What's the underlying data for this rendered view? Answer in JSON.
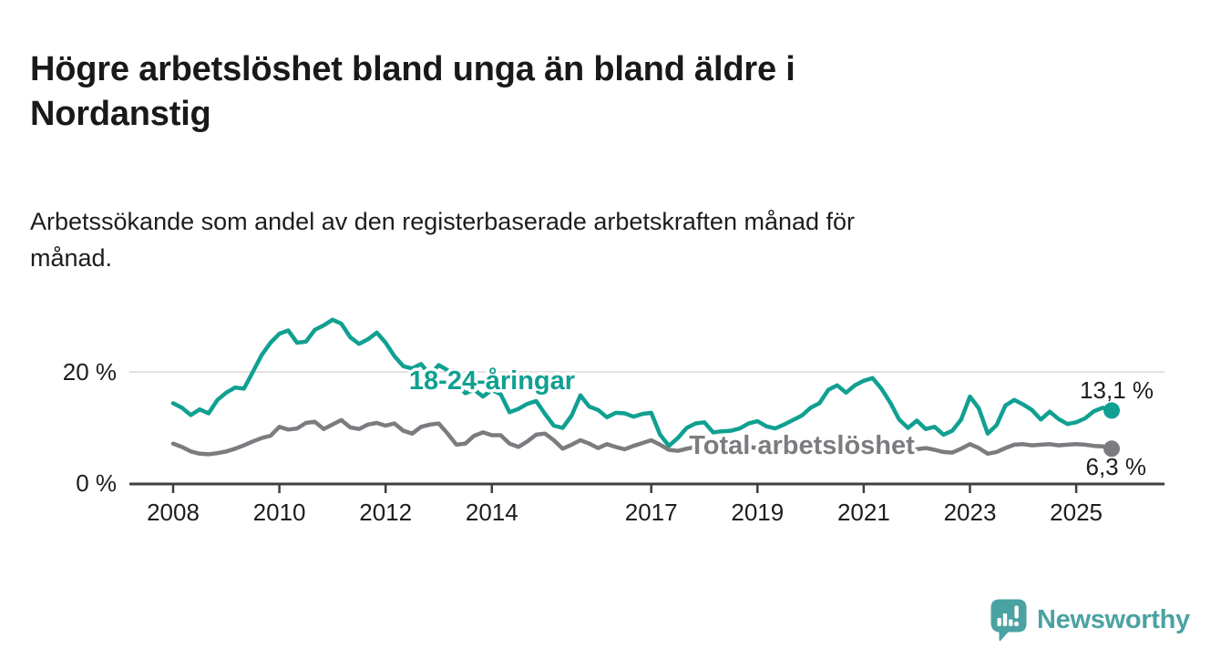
{
  "header": {
    "title_lines": [
      "Högre arbetslöshet bland unga än bland äldre i",
      "Nordanstig"
    ],
    "subtitle_lines": [
      "Arbetssökande som andel av den registerbaserade arbetskraften månad för",
      "månad."
    ]
  },
  "footer": {
    "brand": "Newsworthy",
    "brand_color": "#4ba2a2",
    "logo_icon": "newsworthy-speech-bubble-bar-chart-icon"
  },
  "colors": {
    "young_series": "#10a091",
    "total_series": "#7c7c80",
    "gridline": "#e2e2e2",
    "axis": "#3f3f3f",
    "text": "#1d1d1d",
    "background": "#ffffff"
  },
  "chart_data": {
    "type": "line",
    "title": "Högre arbetslöshet bland unga än bland äldre i Nordanstig",
    "subtitle": "Arbetssökande som andel av den registerbaserade arbetskraften månad för månad.",
    "xlabel": "",
    "ylabel": "",
    "x_start_year": 2008.0,
    "x_step_years": 0.16667,
    "x_end_year": 2025.667,
    "ylim": [
      0,
      30.5
    ],
    "grid": "single horizontal gridline at 20 %",
    "legend": "inline labels on lines",
    "x_tick_years": [
      2008,
      2010,
      2012,
      2014,
      2017,
      2019,
      2021,
      2023,
      2025
    ],
    "x_tick_labels": [
      "2008",
      "2010",
      "2012",
      "2014",
      "2017",
      "2019",
      "2021",
      "2023",
      "2025"
    ],
    "y_ticks": [
      {
        "value": 20,
        "label": "20 %"
      },
      {
        "value": 0,
        "label": "0 %"
      }
    ],
    "series": [
      {
        "name": "18-24-åringar",
        "color": "#10a091",
        "end_label": "13,1 %",
        "end_value": 13.1,
        "values": [
          14.4,
          13.6,
          12.3,
          13.3,
          12.6,
          15.0,
          16.3,
          17.2,
          17.0,
          20.0,
          23.0,
          25.2,
          26.8,
          27.4,
          25.2,
          25.4,
          27.5,
          28.3,
          29.3,
          28.6,
          26.2,
          25.0,
          25.8,
          27.0,
          25.2,
          22.8,
          21.0,
          20.6,
          21.4,
          19.5,
          21.2,
          20.3,
          17.8,
          16.2,
          16.8,
          15.6,
          16.8,
          16.0,
          12.8,
          13.4,
          14.3,
          14.8,
          12.5,
          10.4,
          10.0,
          12.2,
          15.8,
          13.8,
          13.2,
          11.9,
          12.7,
          12.6,
          12.0,
          12.5,
          12.7,
          8.8,
          6.8,
          8.2,
          10.0,
          10.8,
          11.0,
          9.2,
          9.4,
          9.5,
          9.9,
          10.8,
          11.2,
          10.3,
          9.9,
          10.6,
          11.4,
          12.2,
          13.6,
          14.4,
          16.8,
          17.6,
          16.3,
          17.6,
          18.4,
          18.9,
          17.0,
          14.5,
          11.5,
          10.0,
          11.3,
          9.8,
          10.2,
          8.8,
          9.5,
          11.5,
          15.6,
          13.5,
          9.0,
          10.5,
          14.0,
          15.0,
          14.2,
          13.2,
          11.5,
          12.9,
          11.6,
          10.7,
          11.0,
          11.7,
          13.0,
          13.6,
          13.1
        ]
      },
      {
        "name": "Total arbetslöshet",
        "color": "#7c7c80",
        "end_label": "6,3 %",
        "end_value": 6.3,
        "values": [
          7.2,
          6.6,
          5.8,
          5.4,
          5.3,
          5.5,
          5.8,
          6.3,
          6.9,
          7.6,
          8.2,
          8.6,
          10.2,
          9.7,
          9.9,
          10.9,
          11.1,
          9.8,
          10.6,
          11.4,
          10.1,
          9.8,
          10.6,
          10.9,
          10.4,
          10.8,
          9.5,
          9.0,
          10.2,
          10.6,
          10.8,
          9.0,
          7.0,
          7.2,
          8.6,
          9.2,
          8.7,
          8.7,
          7.2,
          6.6,
          7.6,
          8.8,
          9.0,
          7.8,
          6.3,
          7.0,
          7.8,
          7.2,
          6.4,
          7.1,
          6.6,
          6.2,
          6.8,
          7.3,
          7.8,
          7.0,
          6.1,
          5.9,
          6.3,
          6.6,
          7.0,
          6.6,
          6.3,
          6.1,
          6.4,
          6.6,
          6.4,
          6.2,
          6.4,
          6.6,
          6.4,
          6.6,
          6.6,
          6.8,
          7.4,
          7.7,
          7.5,
          7.4,
          7.3,
          7.2,
          6.7,
          6.2,
          5.8,
          5.6,
          6.2,
          6.4,
          6.1,
          5.7,
          5.6,
          6.3,
          7.1,
          6.4,
          5.4,
          5.7,
          6.4,
          7.0,
          7.1,
          6.9,
          7.0,
          7.1,
          6.9,
          7.0,
          7.1,
          7.0,
          6.8,
          6.7,
          6.3
        ]
      }
    ]
  }
}
